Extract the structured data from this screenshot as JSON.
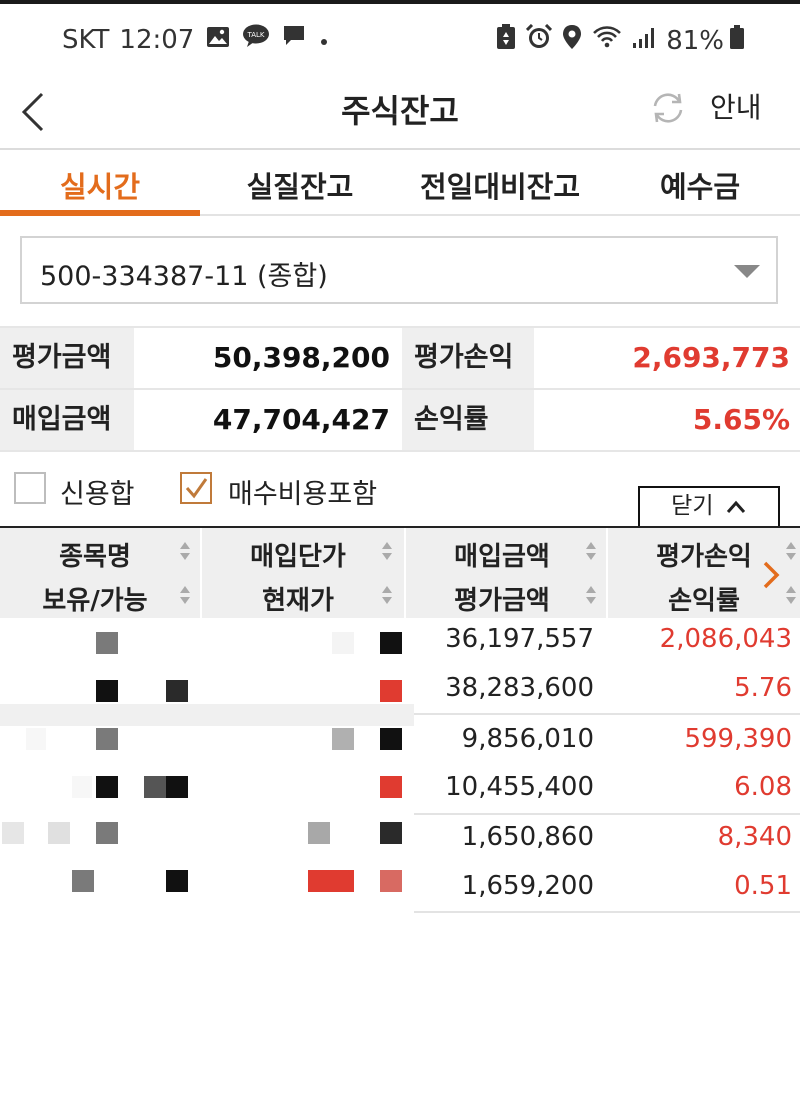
{
  "status": {
    "carrier": "SKT",
    "time": "12:07",
    "battery": "81%"
  },
  "header": {
    "title": "주식잔고",
    "guide_label": "안내"
  },
  "tabs": [
    {
      "label": "실시간",
      "active": true
    },
    {
      "label": "실질잔고",
      "active": false
    },
    {
      "label": "전일대비잔고",
      "active": false
    },
    {
      "label": "예수금",
      "active": false
    }
  ],
  "account": {
    "value": "500-334387-11 (종합)"
  },
  "summary": {
    "eval_amount_label": "평가금액",
    "eval_amount": "50,398,200",
    "eval_pl_label": "평가손익",
    "eval_pl": "2,693,773",
    "buy_amount_label": "매입금액",
    "buy_amount": "47,704,427",
    "pl_rate_label": "손익률",
    "pl_rate": "5.65%"
  },
  "options": {
    "credit_sum_label": "신용합",
    "include_fee_label": "매수비용포함",
    "close_label": "닫기"
  },
  "table": {
    "headers": {
      "col1_top": "종목명",
      "col1_bottom": "보유/가능",
      "col2_top": "매입단가",
      "col2_bottom": "현재가",
      "col3_top": "매입금액",
      "col3_bottom": "평가금액",
      "col4_top": "평가손익",
      "col4_bottom": "손익률"
    },
    "rows": [
      {
        "buy_amount": "36,197,557",
        "eval_amount": "38,283,600",
        "eval_pl": "2,086,043",
        "pl_rate": "5.76"
      },
      {
        "buy_amount": "9,856,010",
        "eval_amount": "10,455,400",
        "eval_pl": "599,390",
        "pl_rate": "6.08"
      },
      {
        "buy_amount": "1,650,860",
        "eval_amount": "1,659,200",
        "eval_pl": "8,340",
        "pl_rate": "0.51"
      }
    ]
  },
  "colors": {
    "accent": "#e36c1c",
    "profit": "#e03b30"
  }
}
